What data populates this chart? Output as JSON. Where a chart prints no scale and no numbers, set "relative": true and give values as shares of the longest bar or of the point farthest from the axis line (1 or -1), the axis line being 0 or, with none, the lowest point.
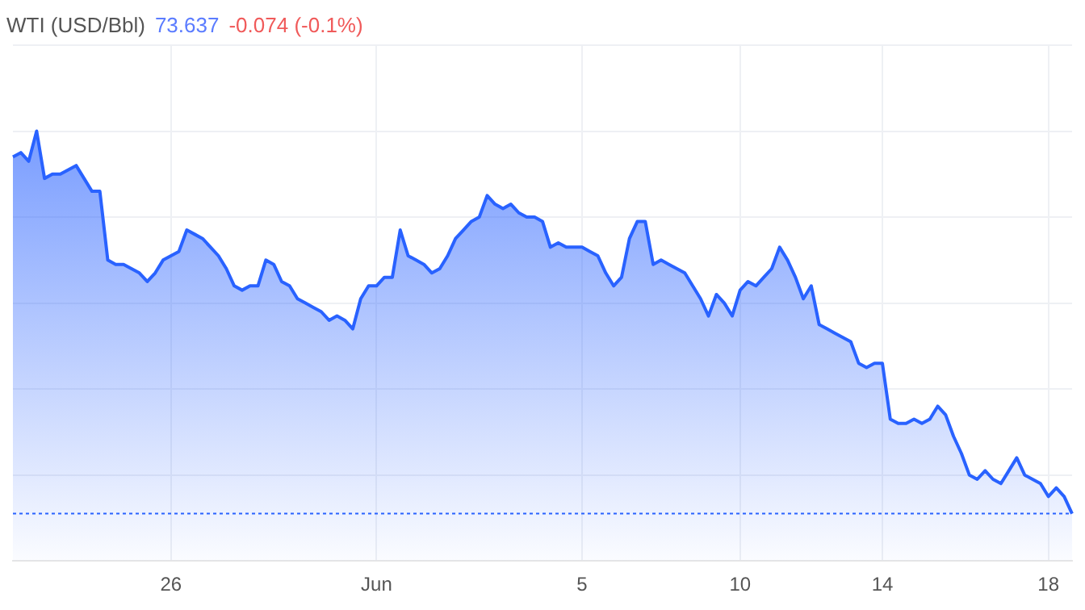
{
  "chart_data": {
    "type": "area",
    "title": "WTI (USD/Bbl)",
    "annotations": [
      "73.637",
      "-0.074 (-0.1%)"
    ],
    "relative": true,
    "grid": true,
    "legend": false,
    "marker": "none",
    "line_style": "solid",
    "categories": [
      null,
      null,
      null,
      null,
      null,
      null,
      null,
      null,
      null,
      null,
      null,
      null,
      null,
      null,
      null,
      null,
      null,
      null,
      null,
      null,
      "26",
      null,
      null,
      null,
      null,
      null,
      null,
      null,
      null,
      null,
      null,
      null,
      null,
      null,
      null,
      null,
      null,
      null,
      null,
      null,
      null,
      null,
      null,
      null,
      null,
      null,
      "Jun",
      null,
      null,
      null,
      null,
      null,
      null,
      null,
      null,
      null,
      null,
      null,
      null,
      null,
      null,
      null,
      null,
      null,
      null,
      null,
      null,
      null,
      null,
      null,
      null,
      null,
      "5",
      null,
      null,
      null,
      null,
      null,
      null,
      null,
      null,
      null,
      null,
      null,
      null,
      null,
      null,
      null,
      null,
      null,
      null,
      null,
      "10",
      null,
      null,
      null,
      null,
      null,
      null,
      null,
      null,
      null,
      null,
      null,
      null,
      null,
      null,
      null,
      null,
      null,
      "14",
      null,
      null,
      null,
      null,
      null,
      null,
      null,
      null,
      null,
      null,
      null,
      null,
      null,
      null,
      null,
      null,
      null,
      null,
      null,
      null,
      "18",
      null,
      null,
      null
    ],
    "series": [
      {
        "color": "#2962ff",
        "values": [
          0.94,
          0.95,
          0.93,
          1,
          0.89,
          0.9,
          0.9,
          0.91,
          0.92,
          0.89,
          0.86,
          0.86,
          0.7,
          0.69,
          0.69,
          0.68,
          0.67,
          0.65,
          0.67,
          0.7,
          0.71,
          0.72,
          0.77,
          0.76,
          0.75,
          0.73,
          0.71,
          0.68,
          0.64,
          0.63,
          0.64,
          0.64,
          0.7,
          0.69,
          0.65,
          0.64,
          0.61,
          0.6,
          0.59,
          0.58,
          0.56,
          0.57,
          0.56,
          0.54,
          0.61,
          0.64,
          0.64,
          0.66,
          0.66,
          0.77,
          0.71,
          0.7,
          0.69,
          0.67,
          0.68,
          0.71,
          0.75,
          0.77,
          0.79,
          0.8,
          0.85,
          0.83,
          0.82,
          0.83,
          0.81,
          0.8,
          0.8,
          0.79,
          0.73,
          0.74,
          0.73,
          0.73,
          0.73,
          0.72,
          0.71,
          0.67,
          0.64,
          0.66,
          0.75,
          0.79,
          0.79,
          0.69,
          0.7,
          0.69,
          0.68,
          0.67,
          0.64,
          0.61,
          0.57,
          0.62,
          0.6,
          0.57,
          0.63,
          0.65,
          0.64,
          0.66,
          0.68,
          0.73,
          0.7,
          0.66,
          0.61,
          0.64,
          0.55,
          0.54,
          0.53,
          0.52,
          0.51,
          0.46,
          0.45,
          0.46,
          0.46,
          0.33,
          0.32,
          0.32,
          0.33,
          0.32,
          0.33,
          0.36,
          0.34,
          0.29,
          0.25,
          0.2,
          0.19,
          0.21,
          0.19,
          0.18,
          0.21,
          0.24,
          0.2,
          0.19,
          0.18,
          0.15,
          0.17,
          0.15,
          0.11
        ]
      }
    ],
    "ref_lines": [
      {
        "axis": "y",
        "value": 0.11,
        "color": "#2962ff",
        "line_style": "dotted"
      }
    ]
  }
}
